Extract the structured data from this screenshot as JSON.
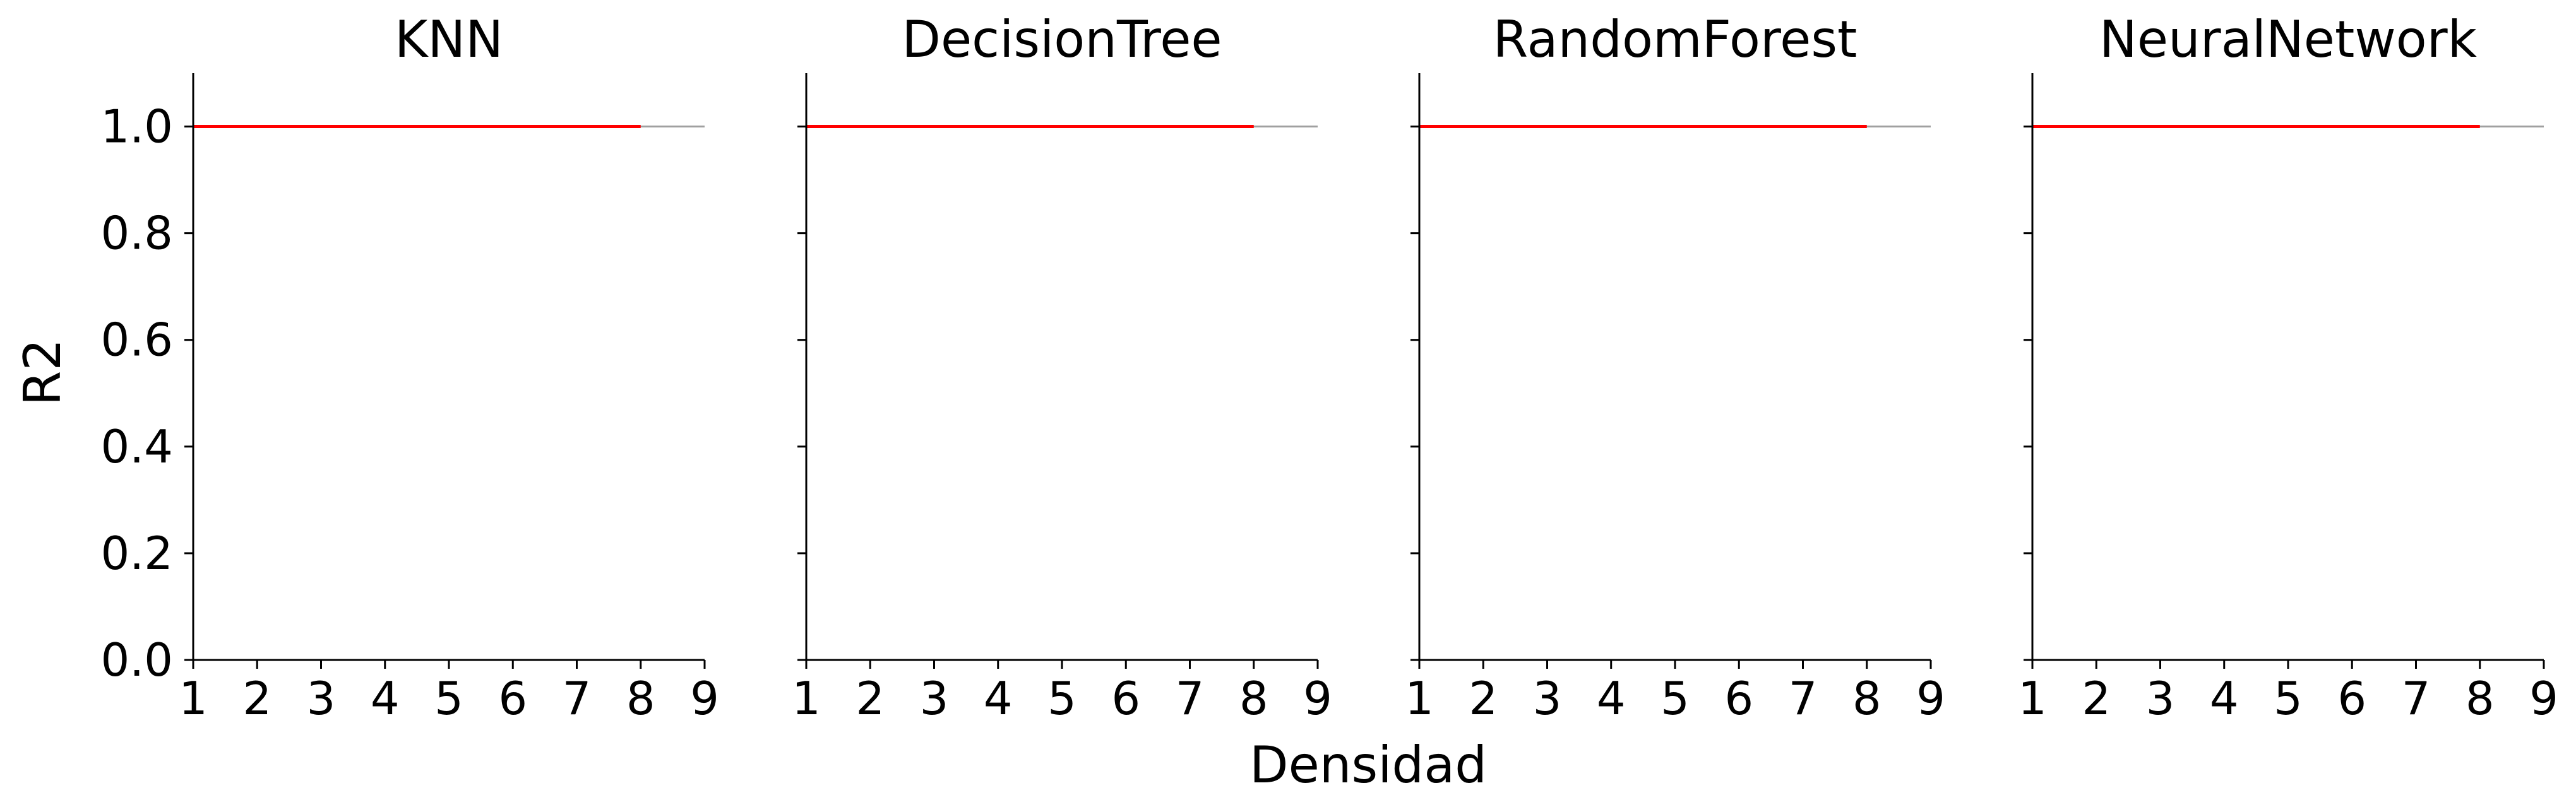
{
  "figure": {
    "xlabel": "Densidad",
    "ylabel": "R2"
  },
  "chart_data": [
    {
      "type": "line",
      "title": "KNN",
      "xlim": [
        1,
        9
      ],
      "ylim": [
        0.0,
        1.1
      ],
      "xticks": [
        "1",
        "2",
        "3",
        "4",
        "5",
        "6",
        "7",
        "8",
        "9"
      ],
      "yticks": [
        "0.0",
        "0.2",
        "0.4",
        "0.6",
        "0.8",
        "1.0"
      ],
      "reference_line": {
        "y": 1.0,
        "color": "#a0a0a0"
      },
      "series": [
        {
          "x": [
            1,
            8
          ],
          "y": [
            1.0,
            1.0
          ],
          "color": "#ff0000"
        }
      ]
    },
    {
      "type": "line",
      "title": "DecisionTree",
      "xlim": [
        1,
        9
      ],
      "ylim": [
        0.0,
        1.1
      ],
      "xticks": [
        "1",
        "2",
        "3",
        "4",
        "5",
        "6",
        "7",
        "8",
        "9"
      ],
      "yticks": [
        "0.0",
        "0.2",
        "0.4",
        "0.6",
        "0.8",
        "1.0"
      ],
      "reference_line": {
        "y": 1.0,
        "color": "#a0a0a0"
      },
      "series": [
        {
          "x": [
            1,
            8
          ],
          "y": [
            1.0,
            1.0
          ],
          "color": "#ff0000"
        }
      ]
    },
    {
      "type": "line",
      "title": "RandomForest",
      "xlim": [
        1,
        9
      ],
      "ylim": [
        0.0,
        1.1
      ],
      "xticks": [
        "1",
        "2",
        "3",
        "4",
        "5",
        "6",
        "7",
        "8",
        "9"
      ],
      "yticks": [
        "0.0",
        "0.2",
        "0.4",
        "0.6",
        "0.8",
        "1.0"
      ],
      "reference_line": {
        "y": 1.0,
        "color": "#a0a0a0"
      },
      "series": [
        {
          "x": [
            1,
            8
          ],
          "y": [
            1.0,
            1.0
          ],
          "color": "#ff0000"
        }
      ]
    },
    {
      "type": "line",
      "title": "NeuralNetwork",
      "xlim": [
        1,
        9
      ],
      "ylim": [
        0.0,
        1.1
      ],
      "xticks": [
        "1",
        "2",
        "3",
        "4",
        "5",
        "6",
        "7",
        "8",
        "9"
      ],
      "yticks": [
        "0.0",
        "0.2",
        "0.4",
        "0.6",
        "0.8",
        "1.0"
      ],
      "reference_line": {
        "y": 1.0,
        "color": "#a0a0a0"
      },
      "series": [
        {
          "x": [
            1,
            8
          ],
          "y": [
            1.0,
            1.0
          ],
          "color": "#ff0000"
        }
      ]
    }
  ]
}
